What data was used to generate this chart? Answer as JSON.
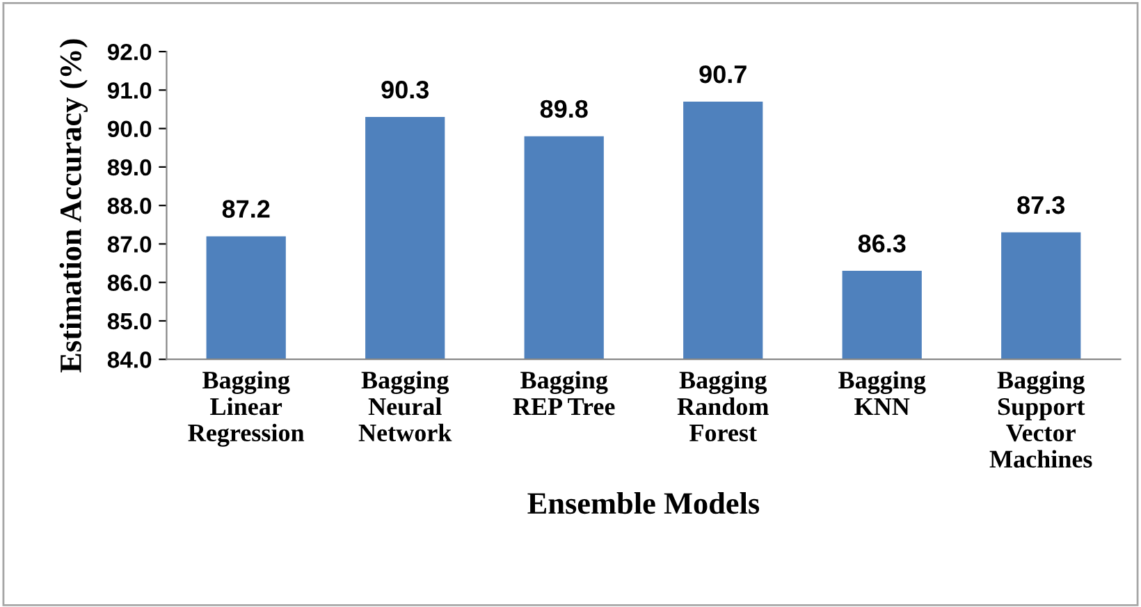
{
  "chart_data": {
    "type": "bar",
    "xlabel": "Ensemble Models",
    "ylabel": "Estimation Accuracy (%)",
    "categories": [
      "Bagging\nLinear\nRegression",
      "Bagging\nNeural\nNetwork",
      "Bagging\nREP Tree",
      "Bagging\nRandom\nForest",
      "Bagging\nKNN",
      "Bagging\nSupport\nVector\nMachines"
    ],
    "values": [
      87.2,
      90.3,
      89.8,
      90.7,
      86.3,
      87.3
    ],
    "color": "#4f81bd",
    "ylim": [
      84,
      92
    ],
    "yticks": [
      {
        "value": 84,
        "label": "84.0"
      },
      {
        "value": 85,
        "label": "85.0"
      },
      {
        "value": 86,
        "label": "86.0"
      },
      {
        "value": 87,
        "label": "87.0"
      },
      {
        "value": 88,
        "label": "88.0"
      },
      {
        "value": 89,
        "label": "89.0"
      },
      {
        "value": 90,
        "label": "90.0"
      },
      {
        "value": 91,
        "label": "91.0"
      },
      {
        "value": 92,
        "label": "92.0"
      }
    ],
    "data_labels": true,
    "grid": false,
    "legend": false
  }
}
